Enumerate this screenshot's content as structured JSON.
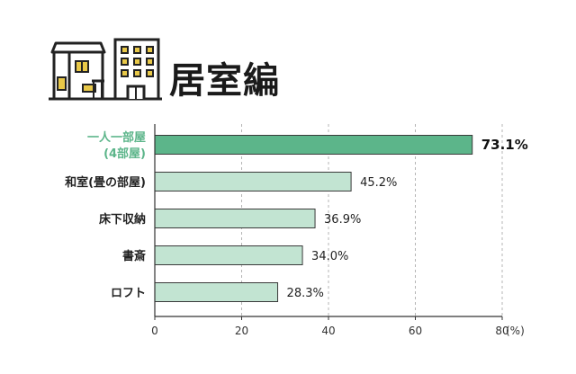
{
  "header": {
    "title": "居室編",
    "icon": "house-and-building-icon"
  },
  "chart_data": {
    "type": "bar",
    "orientation": "horizontal",
    "categories": [
      {
        "line1": "一人一部屋",
        "line2": "(4部屋)"
      },
      {
        "line1": "和室(畳の部屋)",
        "line2": ""
      },
      {
        "line1": "床下収納",
        "line2": ""
      },
      {
        "line1": "書斎",
        "line2": ""
      },
      {
        "line1": "ロフト",
        "line2": ""
      }
    ],
    "values": [
      73.1,
      45.2,
      36.9,
      34.0,
      28.3
    ],
    "value_labels": [
      "73.1%",
      "45.2%",
      "36.9%",
      "34.0%",
      "28.3%"
    ],
    "highlight_index": 0,
    "xlim": [
      0,
      80
    ],
    "xticks": [
      "0",
      "20",
      "40",
      "60",
      "80"
    ],
    "x_unit": "(%)",
    "grid": "vertical-dashed",
    "colors": {
      "highlight_fill": "#5cb58a",
      "bar_fill": "#c2e4d2",
      "bar_stroke": "#3a3a3a",
      "highlight_text": "#5cb58a"
    }
  }
}
